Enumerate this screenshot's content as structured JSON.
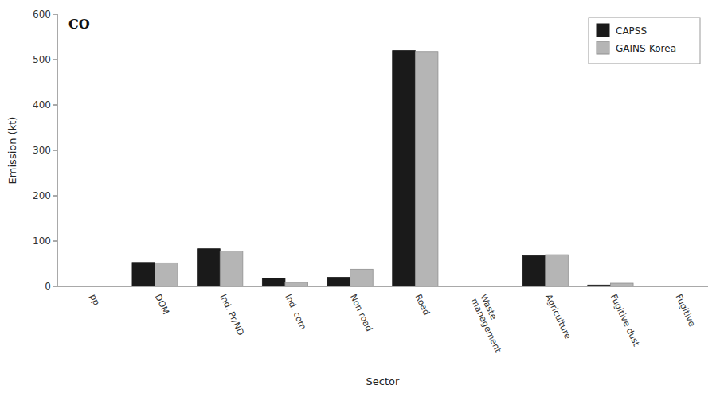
{
  "chart_data": {
    "type": "bar",
    "title": "CO",
    "xlabel": "Sector",
    "ylabel": "Emission (kt)",
    "categories": [
      "pp",
      "DOM",
      "Ind. Pr/ND",
      "Ind. com",
      "Non road",
      "Road",
      "Waste\nmanagement",
      "Agriculture",
      "Fugitive dust",
      "Fugitive"
    ],
    "series": [
      {
        "name": "CAPSS",
        "color": "#1a1a1a",
        "values": [
          0,
          53,
          83,
          18,
          20,
          520,
          0,
          68,
          3,
          0
        ]
      },
      {
        "name": "GAINS-Korea",
        "color": "#b5b5b5",
        "values": [
          0,
          52,
          78,
          9,
          38,
          518,
          0,
          70,
          7,
          0
        ]
      }
    ],
    "ylim": [
      0,
      600
    ],
    "yticks": [
      0,
      100,
      200,
      300,
      400,
      500,
      600
    ],
    "legend": "upper right",
    "grid": false
  }
}
